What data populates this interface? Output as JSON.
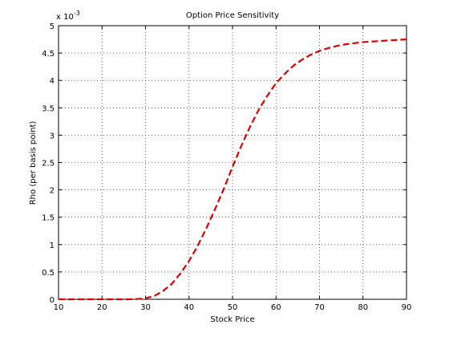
{
  "chart_data": {
    "type": "line",
    "title": "Option Price Sensitivity",
    "x_label": "Stock Price",
    "y_label": "Rho (per basis point)",
    "y_multiplier": {
      "base": "x 10",
      "exponent": "-3"
    },
    "x": [
      10,
      12,
      14,
      16,
      18,
      20,
      22,
      24,
      26,
      28,
      30,
      32,
      34,
      36,
      38,
      40,
      42,
      44,
      46,
      48,
      50,
      52,
      54,
      56,
      58,
      60,
      62,
      64,
      66,
      68,
      70,
      72,
      74,
      76,
      78,
      80,
      82,
      84,
      86,
      88,
      90
    ],
    "series": [
      {
        "color": "#e00000",
        "values": [
          0,
          0,
          0,
          0,
          0,
          0,
          0,
          0,
          0,
          0.005,
          0.02,
          0.06,
          0.15,
          0.28,
          0.47,
          0.7,
          0.98,
          1.3,
          1.65,
          2.02,
          2.42,
          2.8,
          3.15,
          3.46,
          3.72,
          3.95,
          4.12,
          4.27,
          4.38,
          4.47,
          4.54,
          4.59,
          4.63,
          4.66,
          4.68,
          4.7,
          4.71,
          4.72,
          4.73,
          4.74,
          4.75
        ]
      }
    ],
    "xlim": [
      10,
      90
    ],
    "xticks": [
      10,
      20,
      30,
      40,
      50,
      60,
      70,
      80,
      90
    ],
    "ylim": [
      0,
      5
    ],
    "yticks": [
      0,
      0.5,
      1,
      1.5,
      2,
      2.5,
      3,
      3.5,
      4,
      4.5,
      5
    ],
    "grid": true
  }
}
